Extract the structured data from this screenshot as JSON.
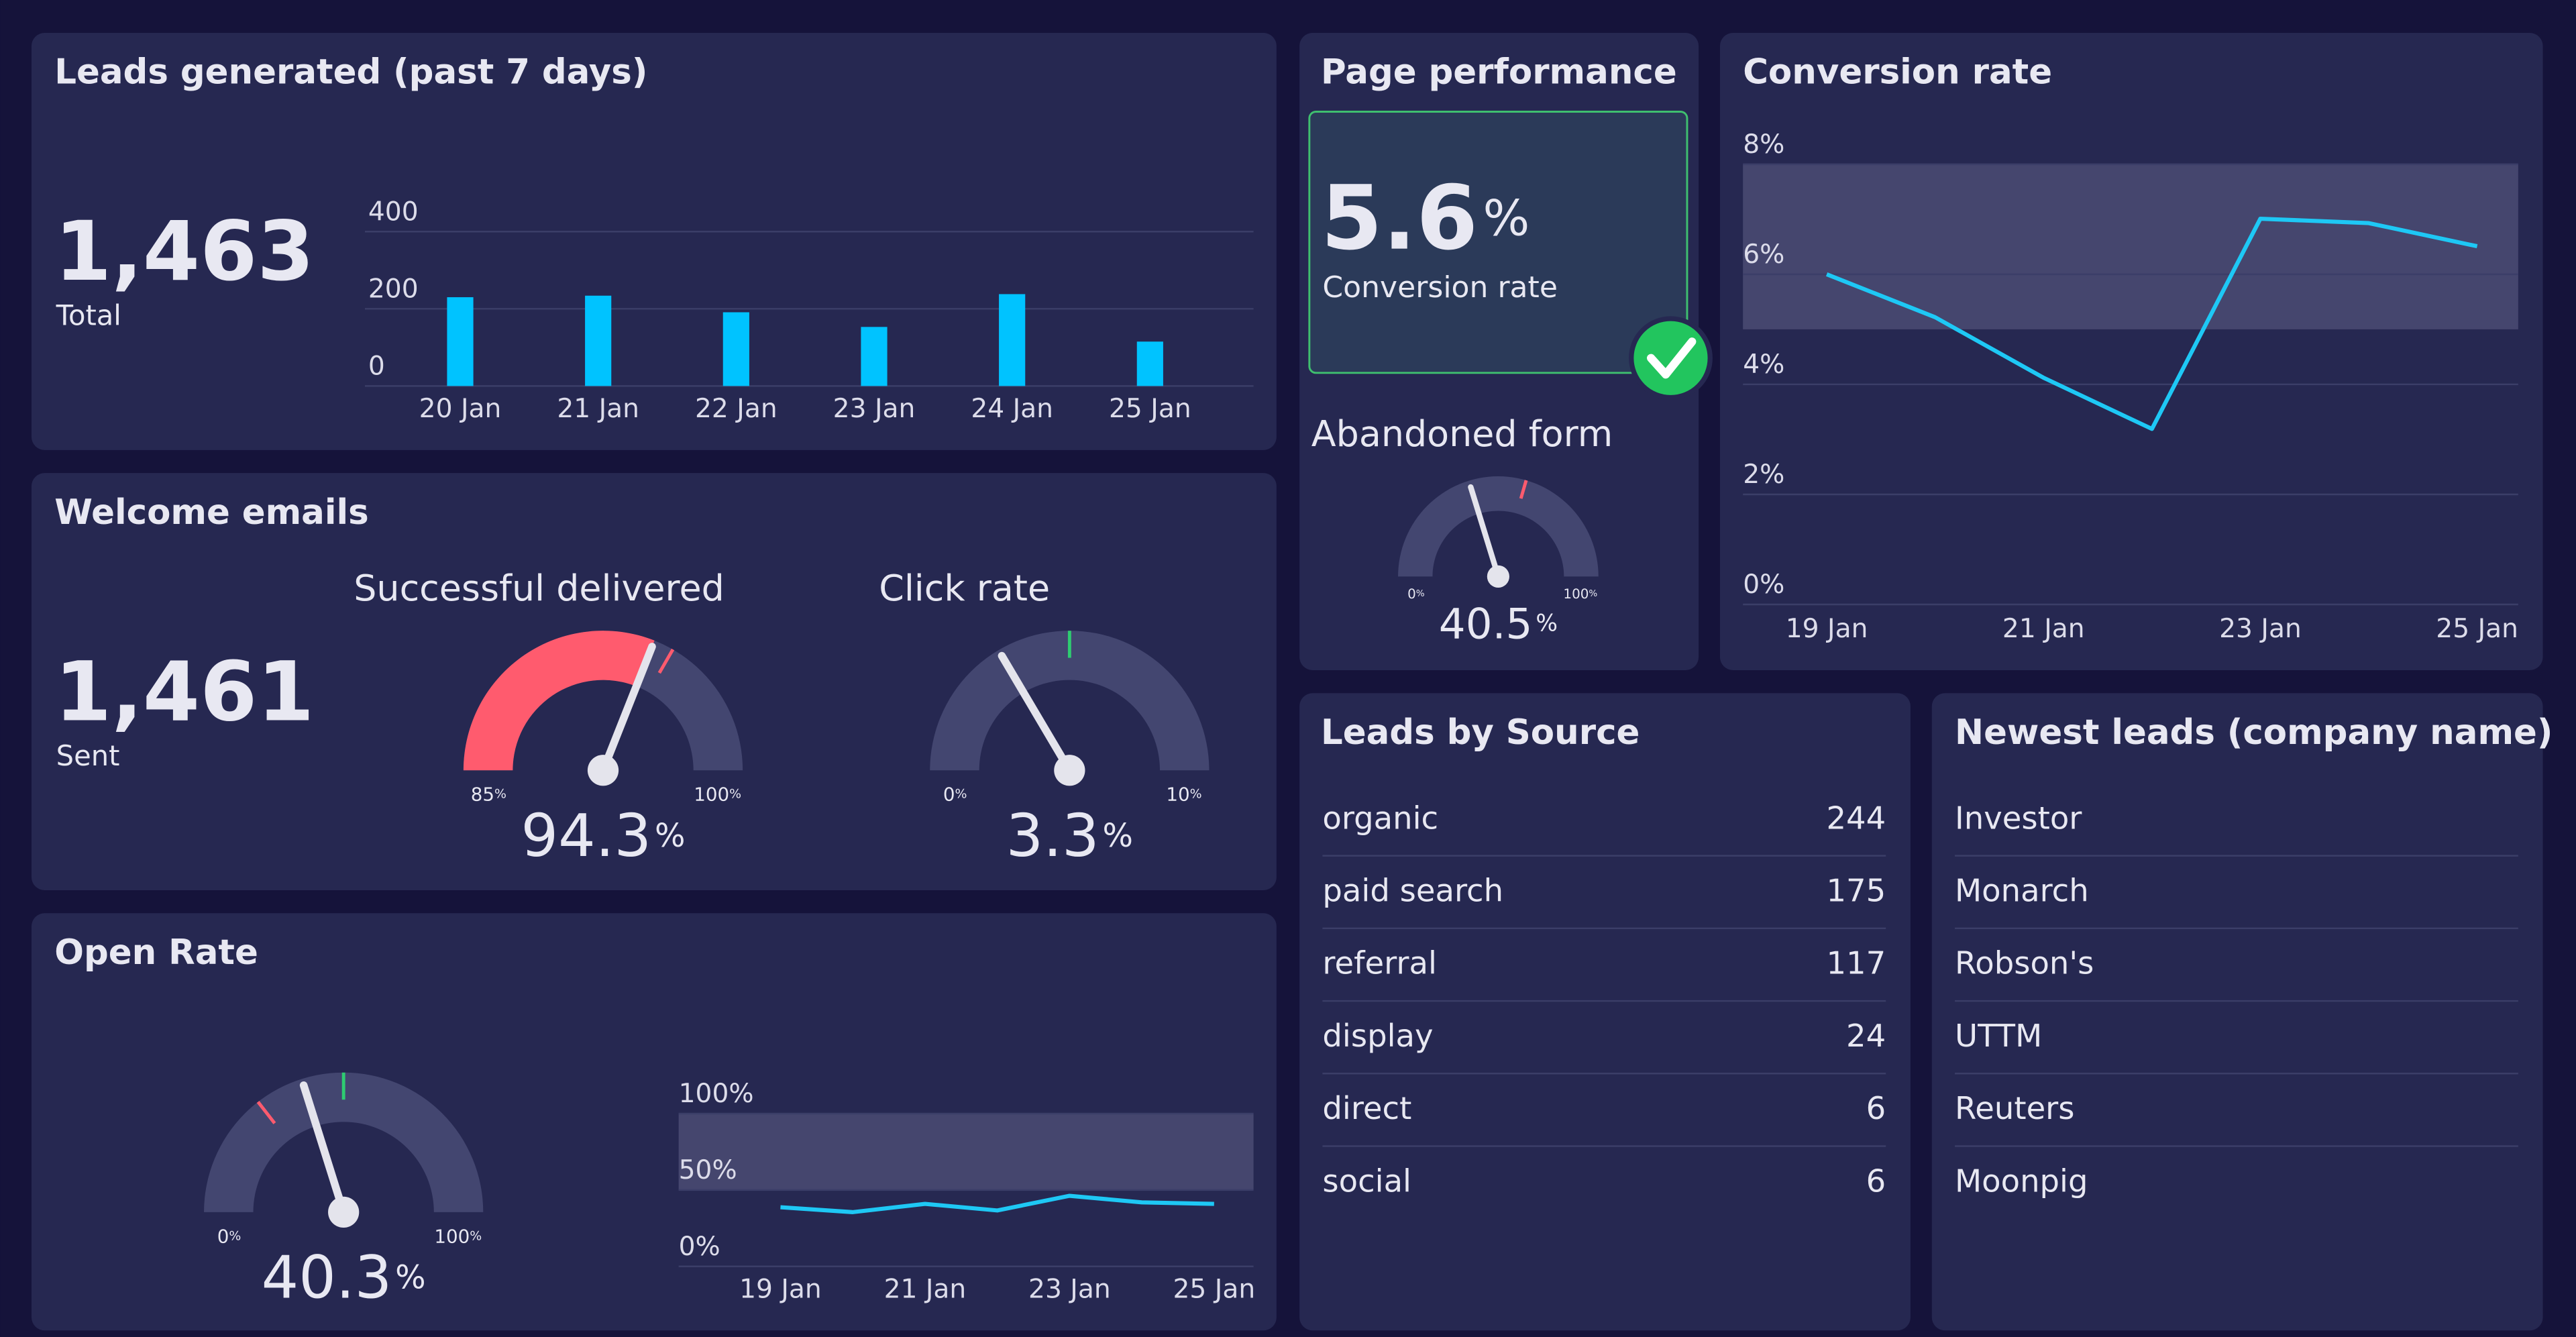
{
  "leads_generated": {
    "title": "Leads generated (past 7 days)",
    "total": "1,463",
    "total_label": "Total",
    "chart": {
      "type": "bar",
      "categories": [
        "20 Jan",
        "21 Jan",
        "22 Jan",
        "23 Jan",
        "24 Jan",
        "25 Jan"
      ],
      "values": [
        230,
        234,
        191,
        153,
        238,
        115
      ],
      "color": "#00c3ff",
      "ylim": [
        0,
        400
      ],
      "yticks": [
        0,
        200,
        400
      ],
      "grid": true
    }
  },
  "welcome_emails": {
    "title": "Welcome emails",
    "sent": "1,461",
    "sent_label": "Sent",
    "gauges": [
      {
        "title": "Successful delivered",
        "value": 94.3,
        "unit": "%",
        "min": 85,
        "max": 100,
        "color": "#ff5b6e",
        "markers": [
          {
            "value": 95,
            "color": "#ff5b6e"
          }
        ]
      },
      {
        "title": "Click rate",
        "value": 3.3,
        "unit": "%",
        "min": 0,
        "max": 10,
        "markers": [
          {
            "value": 5,
            "color": "#2ecc71"
          }
        ]
      }
    ]
  },
  "open_rate": {
    "title": "Open Rate",
    "gauge": {
      "value": 40.3,
      "unit": "%",
      "min": 0,
      "max": 100,
      "markers": [
        {
          "value": 29,
          "color": "#ff5b6e"
        },
        {
          "value": 50,
          "color": "#2ecc71"
        }
      ]
    },
    "chart": {
      "type": "line",
      "categories": [
        "19 Jan",
        null,
        "21 Jan",
        null,
        "23 Jan",
        null,
        "25 Jan"
      ],
      "values": [
        38.7,
        35.5,
        40.9,
        36.6,
        46.2,
        41.9,
        40.9
      ],
      "color": "#1ec8f5",
      "ylim": [
        0,
        100
      ],
      "yticks": [
        {
          "value": 0,
          "label": "0%"
        },
        {
          "value": 50,
          "label": "50%"
        },
        {
          "value": 100,
          "label": "100%"
        }
      ],
      "target_band": [
        50,
        100
      ],
      "grid": true
    }
  },
  "page_performance": {
    "title": "Page performance",
    "kpi": {
      "value": 5.6,
      "unit": "%",
      "label": "Conversion rate"
    },
    "gauge": {
      "title": "Abandoned form",
      "value": 40.5,
      "unit": "%",
      "min": 0,
      "max": 100,
      "markers": [
        {
          "value": 59,
          "color": "#ff5b6e"
        }
      ]
    }
  },
  "conversion_rate": {
    "title": "Conversion rate",
    "chart": {
      "type": "line",
      "categories": [
        "19 Jan",
        null,
        "21 Jan",
        null,
        "23 Jan",
        null,
        "25 Jan"
      ],
      "values": [
        6.0,
        5.22,
        4.12,
        3.19,
        7.01,
        6.93,
        6.51
      ],
      "color": "#1ec8f5",
      "ylim": [
        0,
        8
      ],
      "yticks": [
        {
          "value": 0,
          "label": "0%"
        },
        {
          "value": 2,
          "label": "2%"
        },
        {
          "value": 4,
          "label": "4%"
        },
        {
          "value": 6,
          "label": "6%"
        },
        {
          "value": 8,
          "label": "8%"
        }
      ],
      "target_band": [
        5,
        8
      ],
      "grid": true
    }
  },
  "leads_by_source": {
    "title": "Leads by Source",
    "rows": [
      [
        "organic",
        244
      ],
      [
        "paid search",
        175
      ],
      [
        "referral",
        117
      ],
      [
        "display",
        24
      ],
      [
        "direct",
        6
      ],
      [
        "social",
        6
      ]
    ]
  },
  "newest_leads": {
    "title": "Newest leads (company name)",
    "items": [
      "Investor",
      "Monarch",
      "Robson's",
      "UTTM",
      "Reuters",
      "Moonpig"
    ]
  }
}
